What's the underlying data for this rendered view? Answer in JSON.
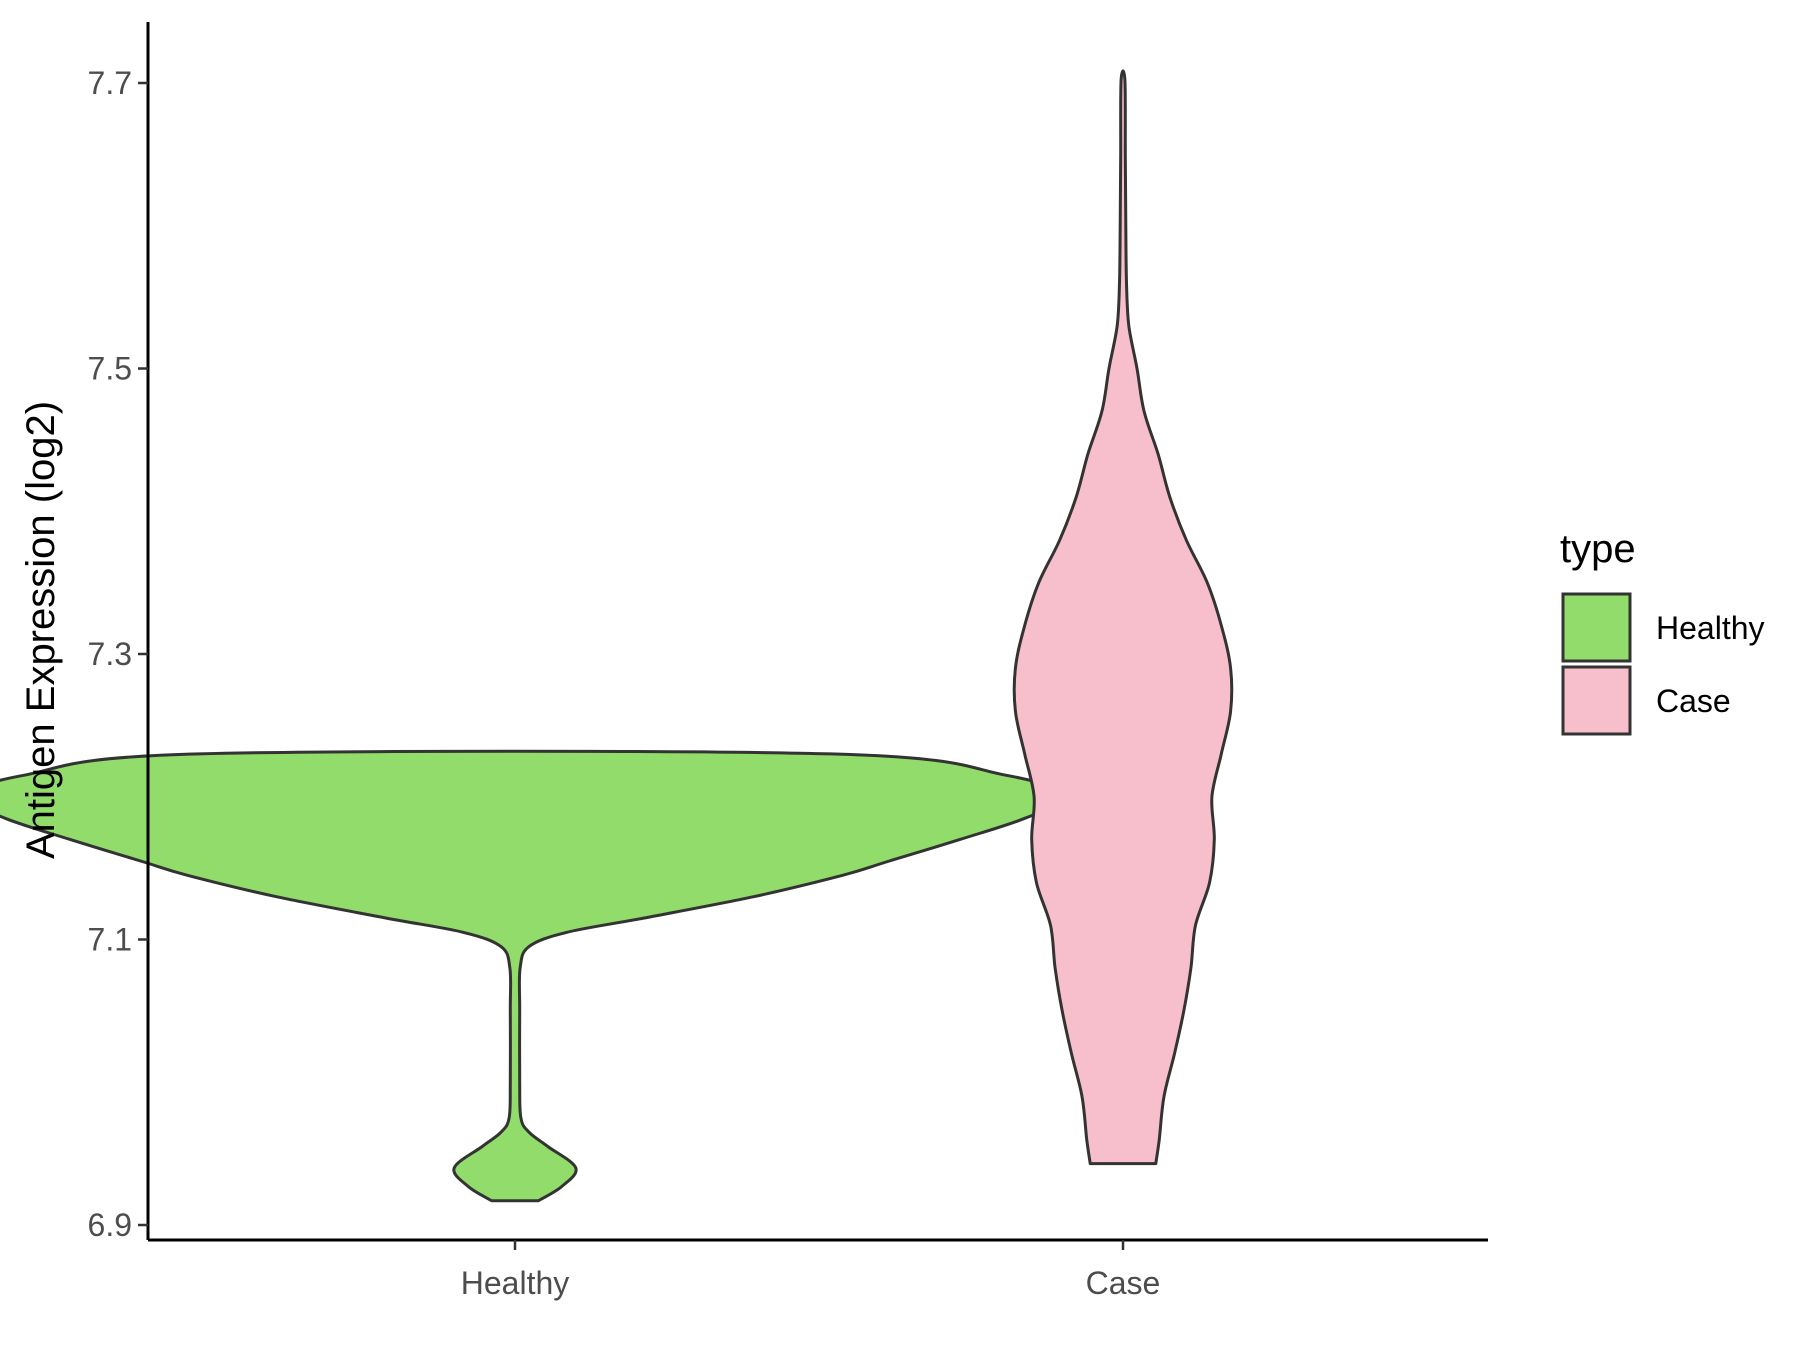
{
  "chart_data": {
    "type": "violin",
    "title": "",
    "xlabel": "",
    "ylabel": "Antigen Expression (log2)",
    "ylim": [
      6.89,
      7.74
    ],
    "yticks": [
      {
        "value": 6.9,
        "label": "6.9"
      },
      {
        "value": 7.1,
        "label": "7.1"
      },
      {
        "value": 7.3,
        "label": "7.3"
      },
      {
        "value": 7.5,
        "label": "7.5"
      },
      {
        "value": 7.7,
        "label": "7.7"
      }
    ],
    "categories": [
      "Healthy",
      "Case"
    ],
    "grid": false,
    "legend": {
      "title": "type",
      "position": "right",
      "entries": [
        {
          "label": "Healthy",
          "color": "#91dc6a"
        },
        {
          "label": "Case",
          "color": "#f7bfcb"
        }
      ]
    },
    "series": [
      {
        "name": "Healthy",
        "color": "#91dc6a",
        "density": [
          [
            6.917,
            0.1
          ],
          [
            6.927,
            0.2
          ],
          [
            6.94,
            0.26
          ],
          [
            6.955,
            0.14
          ],
          [
            6.965,
            0.06
          ],
          [
            6.975,
            0.025
          ],
          [
            7.0,
            0.02
          ],
          [
            7.05,
            0.02
          ],
          [
            7.08,
            0.022
          ],
          [
            7.095,
            0.06
          ],
          [
            7.105,
            0.22
          ],
          [
            7.115,
            0.55
          ],
          [
            7.13,
            1.02
          ],
          [
            7.145,
            1.4
          ],
          [
            7.155,
            1.6
          ],
          [
            7.17,
            1.9
          ],
          [
            7.185,
            2.18
          ],
          [
            7.2,
            2.35
          ],
          [
            7.215,
            2.1
          ],
          [
            7.23,
            1.35
          ]
        ]
      },
      {
        "name": "Case",
        "color": "#f7bfcb",
        "density": [
          [
            6.943,
            0.14
          ],
          [
            6.96,
            0.155
          ],
          [
            6.99,
            0.175
          ],
          [
            7.02,
            0.22
          ],
          [
            7.05,
            0.26
          ],
          [
            7.08,
            0.29
          ],
          [
            7.11,
            0.31
          ],
          [
            7.14,
            0.37
          ],
          [
            7.17,
            0.39
          ],
          [
            7.2,
            0.38
          ],
          [
            7.23,
            0.42
          ],
          [
            7.26,
            0.46
          ],
          [
            7.29,
            0.46
          ],
          [
            7.32,
            0.42
          ],
          [
            7.35,
            0.36
          ],
          [
            7.38,
            0.27
          ],
          [
            7.41,
            0.2
          ],
          [
            7.44,
            0.15
          ],
          [
            7.47,
            0.09
          ],
          [
            7.5,
            0.06
          ],
          [
            7.53,
            0.025
          ],
          [
            7.56,
            0.015
          ],
          [
            7.6,
            0.012
          ],
          [
            7.65,
            0.01
          ],
          [
            7.702,
            0.008
          ]
        ]
      }
    ]
  }
}
